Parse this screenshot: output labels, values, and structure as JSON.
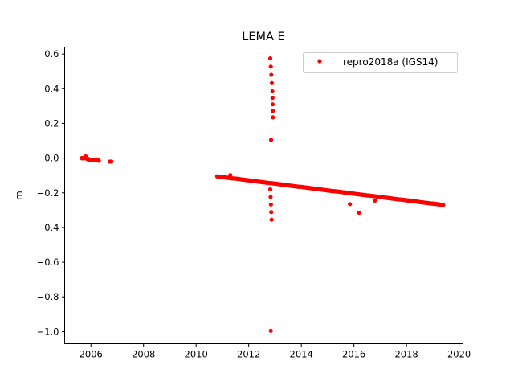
{
  "chart_data": {
    "type": "scatter",
    "title": "LEMA E",
    "xlabel": "",
    "ylabel": "m",
    "xlim": [
      2005.0,
      2020.15
    ],
    "ylim": [
      -1.07,
      0.64
    ],
    "xticks": [
      2006,
      2008,
      2010,
      2012,
      2014,
      2016,
      2018,
      2020
    ],
    "xtick_labels": [
      "2006",
      "2008",
      "2010",
      "2012",
      "2014",
      "2016",
      "2018",
      "2020"
    ],
    "yticks": [
      0.6,
      0.4,
      0.2,
      0.0,
      -0.2,
      -0.4,
      -0.6,
      -0.8,
      -1.0
    ],
    "ytick_labels": [
      "0.6",
      "0.4",
      "0.2",
      "0.0",
      "−0.2",
      "−0.4",
      "−0.6",
      "−0.8",
      "−1.0"
    ],
    "grid": false,
    "legend_placement": "top-right",
    "series": [
      {
        "name": "repro2018a (IGS14)",
        "color": "#ff0000",
        "marker": "circle",
        "x": [
          2005.65,
          2005.7,
          2005.75,
          2005.8,
          2005.85,
          2005.9,
          2005.95,
          2006.0,
          2006.05,
          2006.1,
          2006.15,
          2006.2,
          2006.25,
          2006.3,
          2006.72,
          2006.78,
          2010.8,
          2010.9,
          2011.0,
          2011.1,
          2011.2,
          2011.3,
          2011.4,
          2011.5,
          2011.6,
          2011.7,
          2011.8,
          2011.9,
          2012.0,
          2012.1,
          2012.2,
          2012.3,
          2012.4,
          2012.5,
          2012.6,
          2012.7,
          2012.8,
          2012.9,
          2013.0,
          2013.1,
          2013.2,
          2013.3,
          2013.4,
          2013.5,
          2013.6,
          2013.7,
          2013.8,
          2013.9,
          2014.0,
          2014.1,
          2014.2,
          2014.3,
          2014.4,
          2014.5,
          2014.6,
          2014.7,
          2014.8,
          2014.9,
          2015.0,
          2015.1,
          2015.2,
          2015.3,
          2015.4,
          2015.5,
          2015.6,
          2015.7,
          2015.8,
          2015.9,
          2016.0,
          2016.1,
          2016.2,
          2016.3,
          2016.4,
          2016.5,
          2016.6,
          2016.7,
          2016.8,
          2016.9,
          2017.0,
          2017.1,
          2017.2,
          2017.3,
          2017.4,
          2017.5,
          2017.6,
          2017.7,
          2017.8,
          2017.9,
          2018.0,
          2018.1,
          2018.2,
          2018.3,
          2018.4,
          2018.5,
          2018.6,
          2018.7,
          2018.8,
          2018.9,
          2019.0,
          2019.1,
          2019.2,
          2019.3,
          2019.4,
          2011.3,
          2012.82,
          2012.9,
          2012.92,
          2012.85,
          2012.82,
          2012.87,
          2012.84,
          2015.85,
          2016.2,
          2016.8
        ],
        "y": [
          0.0,
          0.0,
          0.0,
          0.01,
          -0.005,
          -0.005,
          -0.01,
          -0.01,
          -0.01,
          -0.01,
          -0.012,
          -0.01,
          -0.012,
          -0.015,
          -0.02,
          -0.02,
          -0.105,
          -0.107,
          -0.109,
          -0.111,
          -0.113,
          -0.115,
          -0.117,
          -0.118,
          -0.12,
          -0.122,
          -0.124,
          -0.126,
          -0.128,
          -0.13,
          -0.132,
          -0.134,
          -0.136,
          -0.138,
          -0.14,
          -0.142,
          -0.144,
          -0.145,
          -0.147,
          -0.149,
          -0.151,
          -0.153,
          -0.155,
          -0.157,
          -0.159,
          -0.161,
          -0.163,
          -0.165,
          -0.166,
          -0.168,
          -0.17,
          -0.172,
          -0.174,
          -0.176,
          -0.178,
          -0.18,
          -0.182,
          -0.184,
          -0.186,
          -0.188,
          -0.19,
          -0.191,
          -0.193,
          -0.195,
          -0.197,
          -0.199,
          -0.201,
          -0.203,
          -0.205,
          -0.207,
          -0.209,
          -0.211,
          -0.213,
          -0.215,
          -0.216,
          -0.218,
          -0.22,
          -0.222,
          -0.224,
          -0.226,
          -0.228,
          -0.23,
          -0.232,
          -0.234,
          -0.236,
          -0.238,
          -0.239,
          -0.241,
          -0.243,
          -0.245,
          -0.247,
          -0.249,
          -0.251,
          -0.253,
          -0.255,
          -0.257,
          -0.259,
          -0.261,
          -0.262,
          -0.264,
          -0.266,
          -0.268,
          -0.27,
          -0.098,
          0.575,
          0.385,
          0.235,
          0.105,
          -0.18,
          -0.355,
          -0.995,
          -0.265,
          -0.315,
          -0.245
        ]
      }
    ]
  }
}
